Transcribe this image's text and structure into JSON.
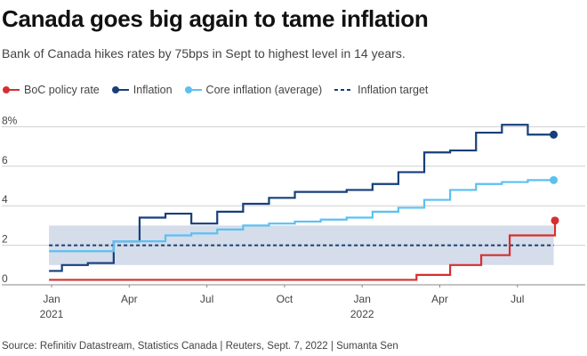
{
  "title": "Canada goes big again to tame inflation",
  "subtitle": "Bank of Canada hikes rates by 75bps in Sept to highest level in 14 years.",
  "source": "Source: Refinitiv Datastream, Statistics Canada | Reuters, Sept. 7, 2022 | Sumanta Sen",
  "legend": [
    {
      "label": "BoC policy rate",
      "color": "#d62f2f",
      "marker": "dot"
    },
    {
      "label": "Inflation",
      "color": "#163f7a",
      "marker": "dot"
    },
    {
      "label": "Core inflation (average)",
      "color": "#5bc0f2",
      "marker": "dot"
    },
    {
      "label": "Inflation target",
      "color": "#163f7a",
      "marker": "dash"
    }
  ],
  "chart_data": {
    "type": "line",
    "title": "Canada goes big again to tame inflation",
    "xlabel": "",
    "ylabel": "",
    "ylim": [
      0,
      8
    ],
    "y_ticks": [
      {
        "value": 0,
        "label": "0"
      },
      {
        "value": 2,
        "label": "2"
      },
      {
        "value": 4,
        "label": "4"
      },
      {
        "value": 6,
        "label": "6"
      },
      {
        "value": 8,
        "label": "8%"
      }
    ],
    "x_ticks": [
      {
        "value": 0,
        "label": "Jan",
        "sublabel": "2021"
      },
      {
        "value": 3,
        "label": "Apr",
        "sublabel": ""
      },
      {
        "value": 6,
        "label": "Jul",
        "sublabel": ""
      },
      {
        "value": 9,
        "label": "Oct",
        "sublabel": ""
      },
      {
        "value": 12,
        "label": "Jan",
        "sublabel": "2022"
      },
      {
        "value": 15,
        "label": "Apr",
        "sublabel": ""
      },
      {
        "value": 18,
        "label": "Jul",
        "sublabel": ""
      }
    ],
    "target_band": [
      1,
      3
    ],
    "target_line": 2,
    "series": [
      {
        "name": "Inflation",
        "color": "#163f7a",
        "step": true,
        "end_marker": true,
        "x": [
          -0.1,
          0.4,
          1.4,
          2.4,
          3.4,
          4.4,
          5.4,
          6.4,
          7.4,
          8.4,
          9.4,
          10.4,
          11.4,
          12.4,
          13.4,
          14.4,
          15.4,
          16.4,
          17.4,
          18.4,
          19.4
        ],
        "values": [
          0.7,
          1.0,
          1.1,
          2.2,
          3.4,
          3.6,
          3.1,
          3.7,
          4.1,
          4.4,
          4.7,
          4.7,
          4.8,
          5.1,
          5.7,
          6.7,
          6.8,
          7.7,
          8.1,
          7.6,
          7.6
        ]
      },
      {
        "name": "Core inflation (average)",
        "color": "#5bc0f2",
        "step": true,
        "end_marker": true,
        "x": [
          -0.1,
          2.4,
          3.4,
          4.4,
          5.4,
          6.4,
          7.4,
          8.4,
          9.4,
          10.4,
          11.4,
          12.4,
          13.4,
          14.4,
          15.4,
          16.4,
          17.4,
          18.4,
          19.4
        ],
        "values": [
          1.7,
          2.2,
          2.2,
          2.5,
          2.6,
          2.8,
          3.0,
          3.1,
          3.2,
          3.3,
          3.4,
          3.7,
          3.9,
          4.3,
          4.8,
          5.1,
          5.2,
          5.3,
          5.3
        ]
      },
      {
        "name": "BoC policy rate",
        "color": "#d62f2f",
        "step": true,
        "end_marker": true,
        "x": [
          -0.1,
          14.1,
          15.4,
          16.6,
          17.7,
          18.6,
          19.4,
          19.45
        ],
        "values": [
          0.25,
          0.5,
          1.0,
          1.5,
          2.5,
          2.5,
          2.5,
          3.25
        ]
      }
    ]
  }
}
